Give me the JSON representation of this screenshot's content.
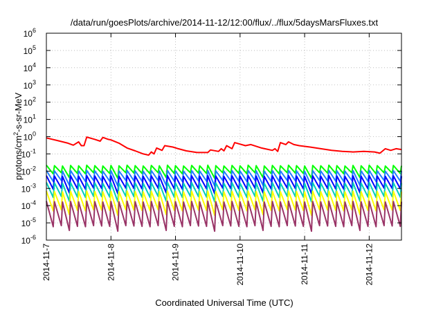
{
  "chart_data": {
    "type": "line",
    "title": "/data/run/goesPlots/archive/2014-11-12/12:00/flux/../flux/5daysMarsFluxes.txt",
    "xlabel": "Coordinated Universal Time (UTC)",
    "ylabel": "protons/cm²-s-sr-MeV",
    "y_scale": "log",
    "ylim_exp": [
      -6,
      6
    ],
    "y_ticks_exp": [
      -6,
      -5,
      -4,
      -3,
      -2,
      -1,
      0,
      1,
      2,
      3,
      4,
      5,
      6
    ],
    "y_tick_base": "10",
    "xlim": [
      "2014-11-07",
      "2014-11-12T12:00"
    ],
    "x_ticks": [
      "2014-11-7",
      "2014-11-8",
      "2014-11-9",
      "2014-11-10",
      "2014-11-11",
      "2014-11-12"
    ],
    "grid": true,
    "legend": false,
    "series": [
      {
        "color": "#ff0000",
        "width": 2,
        "points": [
          [
            "2014-11-07T00:00",
            0.85
          ],
          [
            "2014-11-07T04:00",
            0.6
          ],
          [
            "2014-11-07T08:00",
            0.42
          ],
          [
            "2014-11-07T10:00",
            0.32
          ],
          [
            "2014-11-07T12:00",
            0.5
          ],
          [
            "2014-11-07T13:00",
            0.3
          ],
          [
            "2014-11-07T14:00",
            0.3
          ],
          [
            "2014-11-07T15:00",
            0.95
          ],
          [
            "2014-11-07T18:00",
            0.7
          ],
          [
            "2014-11-07T20:00",
            0.55
          ],
          [
            "2014-11-07T21:00",
            0.9
          ],
          [
            "2014-11-07T23:00",
            0.7
          ],
          [
            "2014-11-08T00:00",
            0.65
          ],
          [
            "2014-11-08T03:00",
            0.42
          ],
          [
            "2014-11-08T06:00",
            0.22
          ],
          [
            "2014-11-08T09:00",
            0.15
          ],
          [
            "2014-11-08T12:00",
            0.1
          ],
          [
            "2014-11-08T14:00",
            0.085
          ],
          [
            "2014-11-08T15:00",
            0.13
          ],
          [
            "2014-11-08T16:00",
            0.1
          ],
          [
            "2014-11-08T17:00",
            0.22
          ],
          [
            "2014-11-08T19:00",
            0.16
          ],
          [
            "2014-11-08T20:00",
            0.3
          ],
          [
            "2014-11-08T23:00",
            0.25
          ],
          [
            "2014-11-09T01:00",
            0.2
          ],
          [
            "2014-11-09T04:00",
            0.15
          ],
          [
            "2014-11-09T08:00",
            0.12
          ],
          [
            "2014-11-09T12:00",
            0.12
          ],
          [
            "2014-11-09T13:00",
            0.17
          ],
          [
            "2014-11-09T16:00",
            0.14
          ],
          [
            "2014-11-09T17:00",
            0.2
          ],
          [
            "2014-11-09T18:00",
            0.15
          ],
          [
            "2014-11-09T19:00",
            0.3
          ],
          [
            "2014-11-09T21:00",
            0.2
          ],
          [
            "2014-11-09T22:00",
            0.45
          ],
          [
            "2014-11-10T02:00",
            0.3
          ],
          [
            "2014-11-10T04:00",
            0.35
          ],
          [
            "2014-11-10T08:00",
            0.22
          ],
          [
            "2014-11-10T12:00",
            0.16
          ],
          [
            "2014-11-10T13:00",
            0.2
          ],
          [
            "2014-11-10T14:00",
            0.14
          ],
          [
            "2014-11-10T15:00",
            0.45
          ],
          [
            "2014-11-10T17:00",
            0.35
          ],
          [
            "2014-11-10T18:00",
            0.5
          ],
          [
            "2014-11-10T20:00",
            0.35
          ],
          [
            "2014-11-10T22:00",
            0.3
          ],
          [
            "2014-11-11T02:00",
            0.25
          ],
          [
            "2014-11-11T06:00",
            0.2
          ],
          [
            "2014-11-11T10:00",
            0.16
          ],
          [
            "2014-11-11T14:00",
            0.14
          ],
          [
            "2014-11-11T18:00",
            0.13
          ],
          [
            "2014-11-11T22:00",
            0.14
          ],
          [
            "2014-11-12T02:00",
            0.13
          ],
          [
            "2014-11-12T04:00",
            0.11
          ],
          [
            "2014-11-12T06:00",
            0.2
          ],
          [
            "2014-11-12T08:00",
            0.16
          ],
          [
            "2014-11-12T10:00",
            0.2
          ],
          [
            "2014-11-12T12:00",
            0.18
          ]
        ]
      },
      {
        "color": "#00ff00",
        "width": 2,
        "periodic": true,
        "hi": 0.022,
        "lo": 0.007
      },
      {
        "color": "#2080ff",
        "width": 2,
        "periodic": true,
        "hi": 0.011,
        "lo": 0.0025
      },
      {
        "color": "#0000ff",
        "width": 2,
        "periodic": true,
        "hi": 0.0055,
        "lo": 0.0009
      },
      {
        "color": "#00ccbb",
        "width": 2,
        "periodic": true,
        "hi": 0.0022,
        "lo": 0.0003
      },
      {
        "color": "#ffff00",
        "width": 2,
        "periodic": true,
        "hi": 0.0007,
        "lo": 5e-05
      },
      {
        "color": "#993366",
        "width": 2,
        "periodic": true,
        "hi": 0.00018,
        "lo": 6e-06
      }
    ]
  }
}
